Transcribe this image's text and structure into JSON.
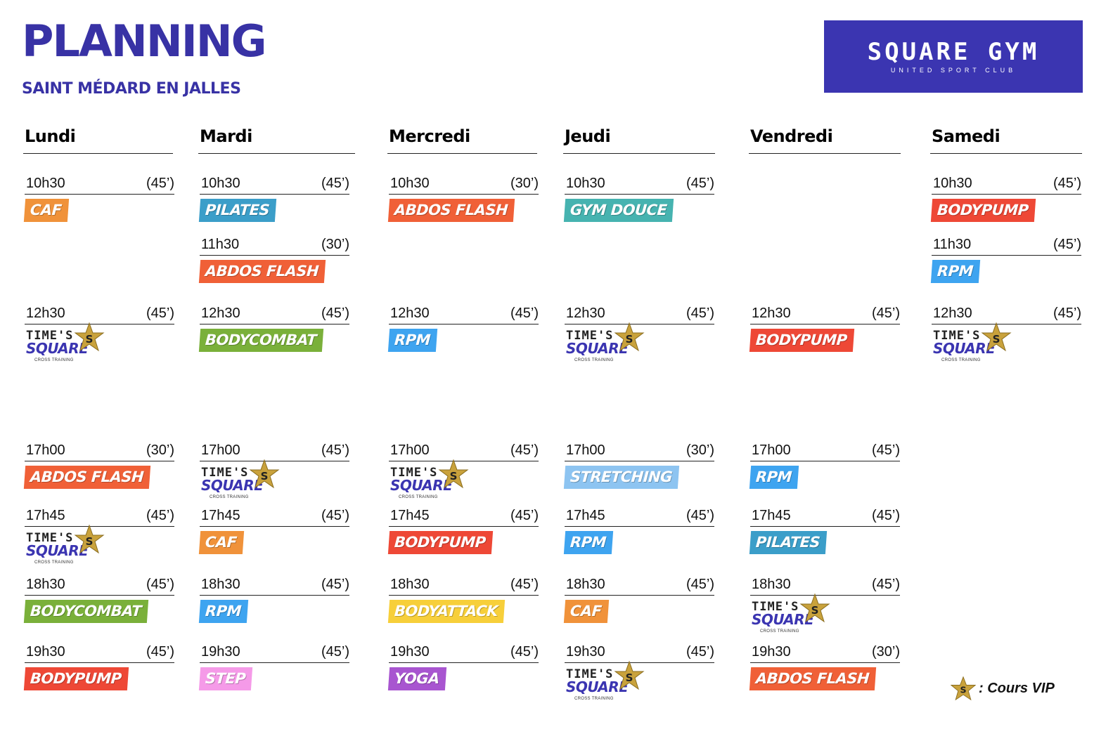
{
  "header": {
    "title": "PLANNING",
    "subtitle": "SAINT MÉDARD EN JALLES"
  },
  "logo": {
    "name": "SQUARE GYM",
    "tagline": "UNITED SPORT CLUB"
  },
  "times_square": {
    "line1": "TIME'S",
    "line2": "SQUARE",
    "line3": "CROSS TRAINING"
  },
  "colors": {
    "brand": "#3b35b1",
    "CAF": "#f0923a",
    "PILATES": "#3b9ec9",
    "ABDOS FLASH": "#f06037",
    "GYM DOUCE": "#46b3b0",
    "BODYPUMP": "#ee4836",
    "RPM": "#3ea4f0",
    "BODYCOMBAT": "#7ab03a",
    "STRETCHING": "#8dc4f1",
    "BODYATTACK": "#f7cf3a",
    "STEP": "#f59ae8",
    "YOGA": "#a855d0"
  },
  "days": [
    {
      "name": "Lundi",
      "slots": [
        {
          "time": "10h30",
          "duration": "(45’)",
          "class": "CAF"
        },
        {
          "time": "12h30",
          "duration": "(45’)",
          "class": "TIMES_SQUARE"
        },
        {
          "time": "17h00",
          "duration": "(30’)",
          "class": "ABDOS FLASH"
        },
        {
          "time": "17h45",
          "duration": "(45’)",
          "class": "TIMES_SQUARE"
        },
        {
          "time": "18h30",
          "duration": "(45’)",
          "class": "BODYCOMBAT"
        },
        {
          "time": "19h30",
          "duration": "(45’)",
          "class": "BODYPUMP"
        }
      ]
    },
    {
      "name": "Mardi",
      "slots": [
        {
          "time": "10h30",
          "duration": "(45’)",
          "class": "PILATES"
        },
        {
          "time": "11h30",
          "duration": "(30’)",
          "class": "ABDOS FLASH"
        },
        {
          "time": "12h30",
          "duration": "(45’)",
          "class": "BODYCOMBAT"
        },
        {
          "time": "17h00",
          "duration": "(45’)",
          "class": "TIMES_SQUARE"
        },
        {
          "time": "17h45",
          "duration": "(45’)",
          "class": "CAF"
        },
        {
          "time": "18h30",
          "duration": "(45’)",
          "class": "RPM"
        },
        {
          "time": "19h30",
          "duration": "(45’)",
          "class": "STEP"
        }
      ]
    },
    {
      "name": "Mercredi",
      "slots": [
        {
          "time": "10h30",
          "duration": "(30’)",
          "class": "ABDOS FLASH"
        },
        {
          "time": "12h30",
          "duration": "(45’)",
          "class": "RPM"
        },
        {
          "time": "17h00",
          "duration": "(45’)",
          "class": "TIMES_SQUARE"
        },
        {
          "time": "17h45",
          "duration": "(45’)",
          "class": "BODYPUMP"
        },
        {
          "time": "18h30",
          "duration": "(45’)",
          "class": "BODYATTACK"
        },
        {
          "time": "19h30",
          "duration": "(45’)",
          "class": "YOGA"
        }
      ]
    },
    {
      "name": "Jeudi",
      "slots": [
        {
          "time": "10h30",
          "duration": "(45’)",
          "class": "GYM DOUCE"
        },
        {
          "time": "12h30",
          "duration": "(45’)",
          "class": "TIMES_SQUARE"
        },
        {
          "time": "17h00",
          "duration": "(30’)",
          "class": "STRETCHING"
        },
        {
          "time": "17h45",
          "duration": "(45’)",
          "class": "RPM"
        },
        {
          "time": "18h30",
          "duration": "(45’)",
          "class": "CAF"
        },
        {
          "time": "19h30",
          "duration": "(45’)",
          "class": "TIMES_SQUARE"
        }
      ]
    },
    {
      "name": "Vendredi",
      "slots": [
        {
          "time": "12h30",
          "duration": "(45’)",
          "class": "BODYPUMP"
        },
        {
          "time": "17h00",
          "duration": "(45’)",
          "class": "RPM"
        },
        {
          "time": "17h45",
          "duration": "(45’)",
          "class": "PILATES"
        },
        {
          "time": "18h30",
          "duration": "(45’)",
          "class": "TIMES_SQUARE"
        },
        {
          "time": "19h30",
          "duration": "(30’)",
          "class": "ABDOS FLASH"
        }
      ]
    },
    {
      "name": "Samedi",
      "slots": [
        {
          "time": "10h30",
          "duration": "(45’)",
          "class": "BODYPUMP"
        },
        {
          "time": "11h30",
          "duration": "(45’)",
          "class": "RPM"
        },
        {
          "time": "12h30",
          "duration": "(45’)",
          "class": "TIMES_SQUARE"
        }
      ]
    }
  ],
  "legend": {
    "icon": "star-icon",
    "text": ": Cours VIP"
  }
}
